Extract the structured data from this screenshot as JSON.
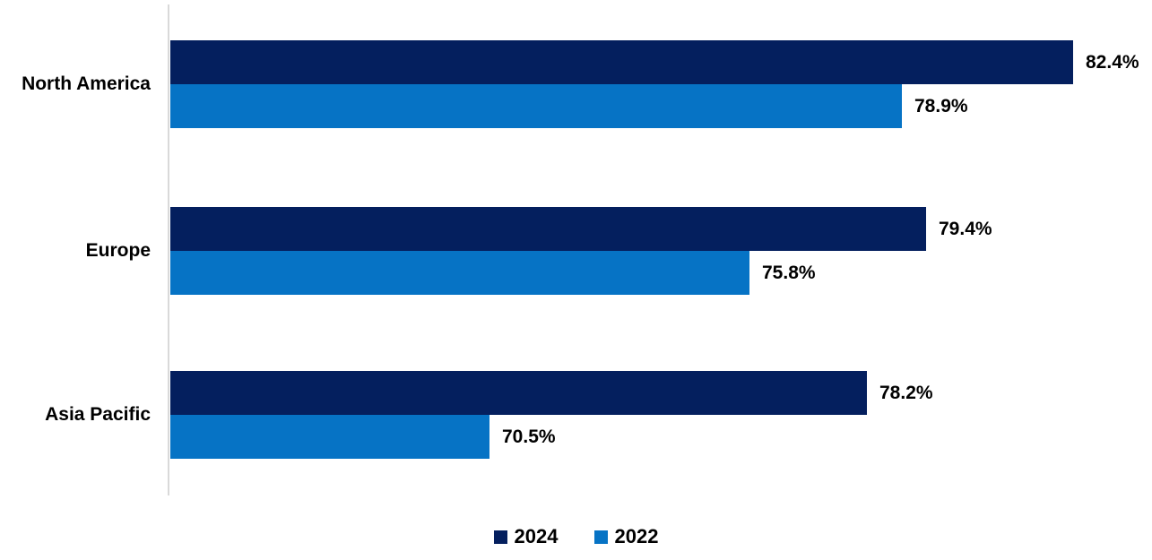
{
  "chart_data": {
    "type": "bar",
    "orientation": "horizontal",
    "title": "",
    "xlabel": "",
    "ylabel": "",
    "categories": [
      "North America",
      "Europe",
      "Asia Pacific"
    ],
    "series": [
      {
        "name": "2024",
        "color": "#041f5e",
        "values": [
          82.4,
          79.4,
          78.2
        ]
      },
      {
        "name": "2022",
        "color": "#0673c5",
        "values": [
          78.9,
          75.8,
          70.5
        ]
      }
    ],
    "data_labels": [
      [
        "82.4%",
        "79.4%",
        "78.2%"
      ],
      [
        "78.9%",
        "75.8%",
        "70.5%"
      ]
    ],
    "value_suffix": "%",
    "xlim": [
      64,
      84
    ],
    "grid": false,
    "legend_position": "bottom-center",
    "axis_line_color": "#d9d9d9",
    "text_color": "#000000",
    "background_color": "#ffffff"
  }
}
